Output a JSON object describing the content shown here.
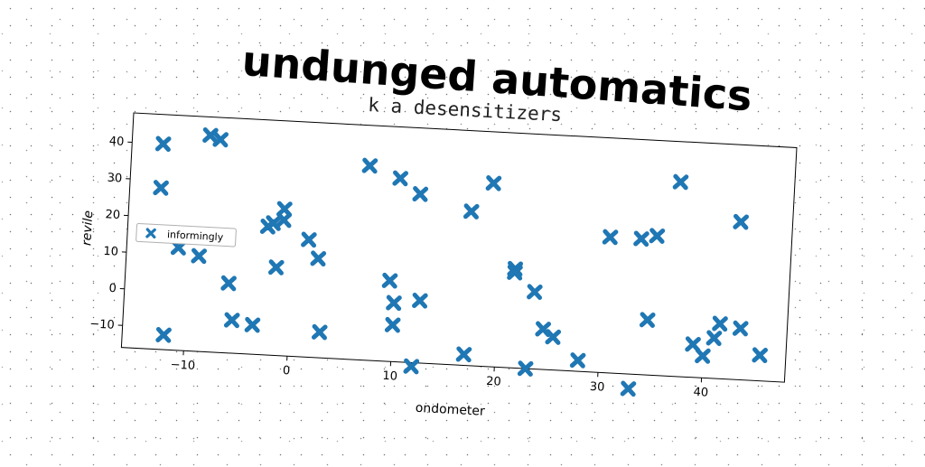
{
  "chart_data": {
    "type": "scatter",
    "title": "undunged automatics",
    "subtitle": "k a desensitizers",
    "xlabel": "ondometer",
    "ylabel": "revile",
    "xlim": [
      -16,
      48
    ],
    "ylim": [
      -16,
      48
    ],
    "xticks": [
      -10,
      0,
      10,
      20,
      30,
      40
    ],
    "yticks": [
      -10,
      0,
      10,
      20,
      30,
      40
    ],
    "legend": {
      "label": "informingly",
      "placement": "left"
    },
    "marker": "x-filled",
    "color": "#1f77b4",
    "series": [
      {
        "name": "informingly",
        "points": [
          [
            -13,
            40
          ],
          [
            -13,
            28
          ],
          [
            -12,
            -12
          ],
          [
            -11,
            12
          ],
          [
            -9,
            10
          ],
          [
            -8.5,
            43
          ],
          [
            -7.5,
            42
          ],
          [
            -6,
            3
          ],
          [
            -5.5,
            -7
          ],
          [
            -3.5,
            -8
          ],
          [
            -2.5,
            19
          ],
          [
            -2,
            20
          ],
          [
            -1.5,
            8
          ],
          [
            -1,
            24
          ],
          [
            -1,
            21
          ],
          [
            1.5,
            16
          ],
          [
            2.5,
            11
          ],
          [
            3,
            -9
          ],
          [
            7,
            37
          ],
          [
            9.5,
            6
          ],
          [
            10,
            34
          ],
          [
            10,
            0
          ],
          [
            10,
            -6
          ],
          [
            12,
            30
          ],
          [
            12,
            -17
          ],
          [
            12.5,
            1
          ],
          [
            17,
            26
          ],
          [
            17,
            -13
          ],
          [
            19,
            34
          ],
          [
            21.5,
            11
          ],
          [
            21.5,
            10
          ],
          [
            23,
            -16
          ],
          [
            23.5,
            5
          ],
          [
            24.5,
            -5
          ],
          [
            25.5,
            -7
          ],
          [
            28,
            -13
          ],
          [
            30.5,
            21
          ],
          [
            33,
            -20
          ],
          [
            33.5,
            21
          ],
          [
            34.5,
            -1
          ],
          [
            35,
            22
          ],
          [
            37,
            37
          ],
          [
            39,
            -7
          ],
          [
            40,
            -10
          ],
          [
            41,
            -5
          ],
          [
            41.5,
            -1
          ],
          [
            43,
            27
          ],
          [
            43.5,
            -2
          ],
          [
            45.5,
            -9
          ]
        ]
      }
    ]
  }
}
